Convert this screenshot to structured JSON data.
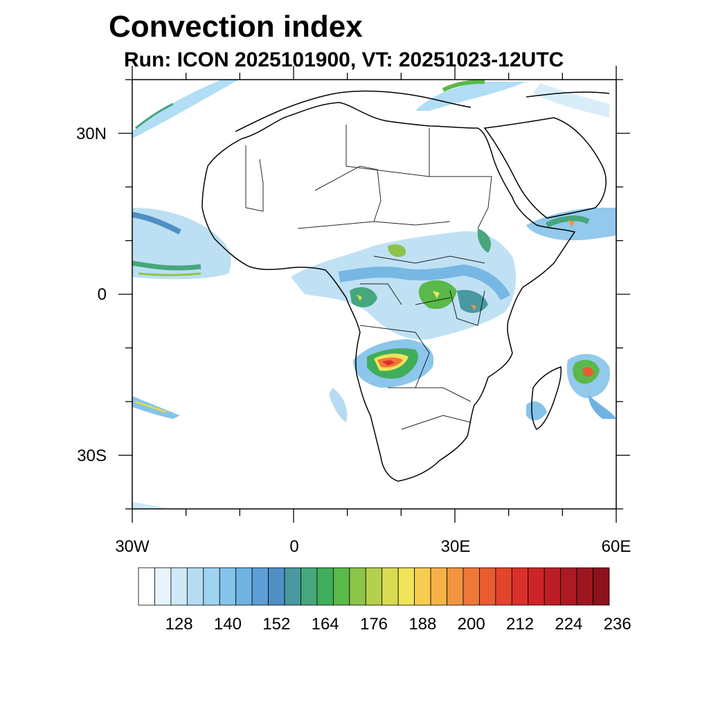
{
  "title": "Convection index",
  "subtitle": "Run: ICON 2025101900,  VT: 20251023-12UTC",
  "map": {
    "lon_range": [
      -30,
      60
    ],
    "lat_range": [
      -40,
      40
    ],
    "y_axis_labels": [
      "30N",
      "0",
      "30S"
    ],
    "x_axis_labels": [
      "30W",
      "0",
      "30E",
      "60E"
    ]
  },
  "colorbar": {
    "colors": [
      "#ffffff",
      "#e8f4fb",
      "#cfe8f6",
      "#b5dcf2",
      "#9ed4f2",
      "#86c3ea",
      "#6fb3e2",
      "#5a9fd6",
      "#4f8fc6",
      "#4a98a0",
      "#46a67c",
      "#3fae5a",
      "#5bb84a",
      "#8cc44a",
      "#b4d04c",
      "#d8dc52",
      "#f0e45a",
      "#f8cc50",
      "#f6b248",
      "#f49440",
      "#ee7838",
      "#e85c30",
      "#e2442c",
      "#da302a",
      "#cc2428",
      "#bc1e26",
      "#ac1a24",
      "#9c1620",
      "#8c121c"
    ],
    "tick_labels": [
      "128",
      "140",
      "152",
      "164",
      "176",
      "188",
      "200",
      "212",
      "224",
      "236"
    ]
  }
}
